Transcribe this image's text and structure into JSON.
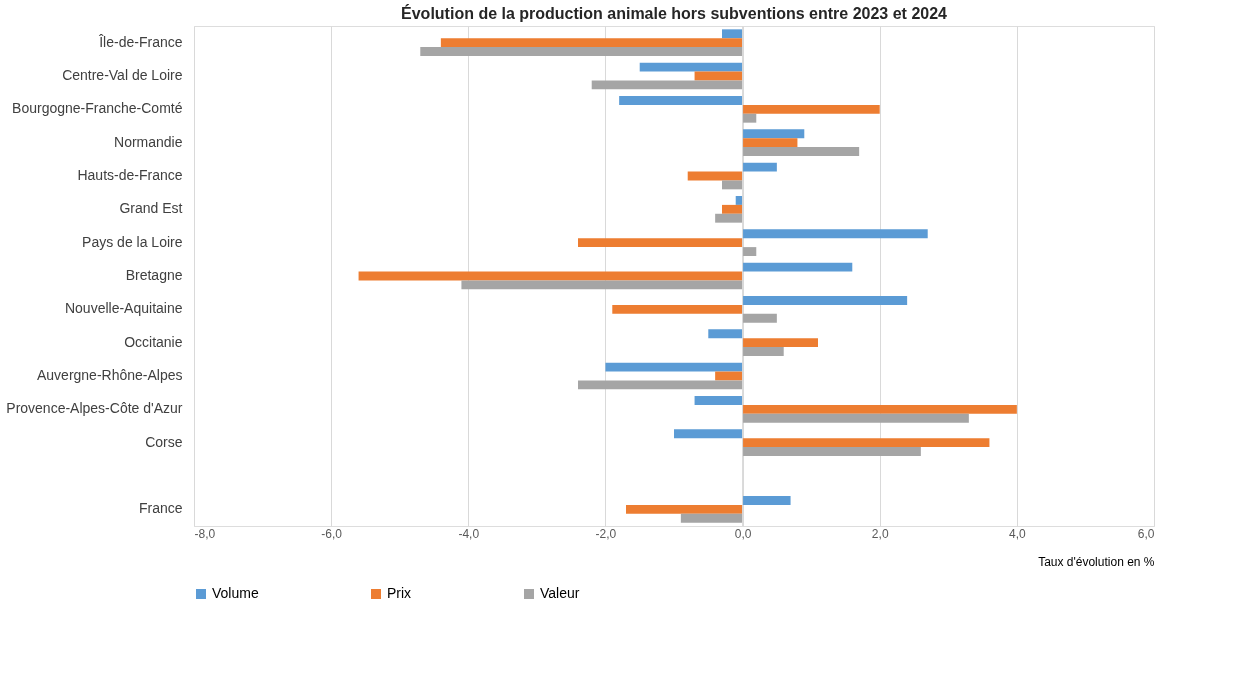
{
  "chart_data": {
    "type": "bar",
    "orientation": "horizontal",
    "title": "Évolution de la production animale hors subventions entre 2023 et 2024",
    "xlabel": "Taux d'évolution en %",
    "categories": [
      "Île-de-France",
      "Centre-Val de Loire",
      "Bourgogne-Franche-Comté",
      "Normandie",
      "Hauts-de-France",
      "Grand Est",
      "Pays de la Loire",
      "Bretagne",
      "Nouvelle-Aquitaine",
      "Occitanie",
      "Auvergne-Rhône-Alpes",
      "Provence-Alpes-Côte d'Azur",
      "Corse",
      null,
      "France"
    ],
    "series": [
      {
        "name": "Volume",
        "color": "#5b9bd5",
        "values": [
          -0.3,
          -1.5,
          -1.8,
          0.9,
          0.5,
          -0.1,
          2.7,
          1.6,
          2.4,
          -0.5,
          -2.0,
          -0.7,
          -1.0,
          null,
          0.7
        ]
      },
      {
        "name": "Prix",
        "color": "#ed7d31",
        "values": [
          -4.4,
          -0.7,
          2.0,
          0.8,
          -0.8,
          -0.3,
          -2.4,
          -5.6,
          -1.9,
          1.1,
          -0.4,
          4.0,
          3.6,
          null,
          -1.7
        ]
      },
      {
        "name": "Valeur",
        "color": "#a5a5a5",
        "values": [
          -4.7,
          -2.2,
          0.2,
          1.7,
          -0.3,
          -0.4,
          0.2,
          -4.1,
          0.5,
          0.6,
          -2.4,
          3.3,
          2.6,
          null,
          -0.9
        ]
      }
    ],
    "xlim": [
      -8,
      6
    ],
    "xticks": [
      {
        "value": -8,
        "label": "-8,0"
      },
      {
        "value": -6,
        "label": "-6,0"
      },
      {
        "value": -4,
        "label": "-4,0"
      },
      {
        "value": -2,
        "label": "-2,0"
      },
      {
        "value": 0,
        "label": "0,0"
      },
      {
        "value": 2,
        "label": "2,0"
      },
      {
        "value": 4,
        "label": "4,0"
      },
      {
        "value": 6,
        "label": "6,0"
      }
    ],
    "grid": "x",
    "legend": "bottom"
  }
}
